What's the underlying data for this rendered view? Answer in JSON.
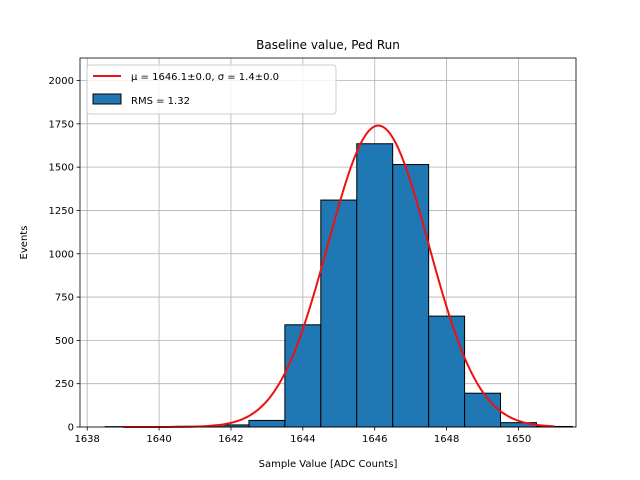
{
  "chart_data": {
    "type": "bar",
    "title": "Baseline value, Ped Run",
    "xlabel": "Sample Value [ADC Counts]",
    "ylabel": "Events",
    "xlim": [
      1637.8,
      1651.6
    ],
    "ylim": [
      0,
      2130
    ],
    "grid": true,
    "legend_placement": "top-left",
    "bin_width": 1,
    "bins": [
      {
        "left": 1638.5,
        "value": 2
      },
      {
        "left": 1639.5,
        "value": 2
      },
      {
        "left": 1640.5,
        "value": 4
      },
      {
        "left": 1641.5,
        "value": 12
      },
      {
        "left": 1642.5,
        "value": 38
      },
      {
        "left": 1643.5,
        "value": 590
      },
      {
        "left": 1644.5,
        "value": 1310
      },
      {
        "left": 1645.5,
        "value": 1635
      },
      {
        "left": 1646.5,
        "value": 1515
      },
      {
        "left": 1647.5,
        "value": 640
      },
      {
        "left": 1648.5,
        "value": 195
      },
      {
        "left": 1649.5,
        "value": 25
      },
      {
        "left": 1650.5,
        "value": 3
      }
    ],
    "fit": {
      "mu": 1646.1,
      "sigma": 1.4,
      "amplitude": 1740,
      "x_range": [
        1639,
        1651
      ]
    },
    "xticks": [
      1638,
      1640,
      1642,
      1644,
      1646,
      1648,
      1650
    ],
    "yticks": [
      0,
      250,
      500,
      750,
      1000,
      1250,
      1500,
      1750,
      2000
    ],
    "legend": {
      "fit_label": "μ = 1646.1±0.0, σ = 1.4±0.0",
      "hist_label": "RMS = 1.32"
    },
    "colors": {
      "bar_fill": "#1f77b4",
      "bar_edge": "#000000",
      "fit_line": "#ee1111",
      "grid": "#b0b0b0"
    }
  }
}
